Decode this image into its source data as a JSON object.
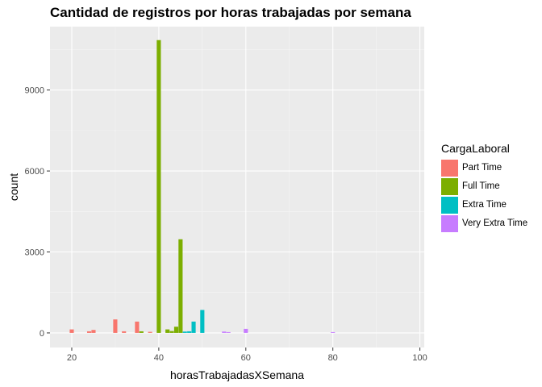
{
  "chart_data": {
    "type": "bar",
    "title": "Cantidad de registros por horas trabajadas por semana",
    "xlabel": "horasTrabajadasXSemana",
    "ylabel": "count",
    "xlim": [
      15,
      101
    ],
    "ylim": [
      -540,
      11350
    ],
    "xticks": [
      20,
      40,
      60,
      80,
      100
    ],
    "yticks": [
      0,
      3000,
      6000,
      9000
    ],
    "xtick_labels": [
      "20",
      "40",
      "60",
      "80",
      "100"
    ],
    "ytick_labels": [
      "0",
      "3000",
      "6000",
      "9000"
    ],
    "grid": true,
    "legend_position": "right",
    "legend_title": "CargaLaboral",
    "series": [
      {
        "name": "Part Time",
        "color": "#F8766D",
        "x": [
          20,
          24,
          25,
          30,
          32,
          35,
          38
        ],
        "y": [
          130,
          60,
          110,
          500,
          60,
          420,
          40
        ]
      },
      {
        "name": "Full Time",
        "color": "#7CAE00",
        "x": [
          36,
          40,
          42,
          43,
          44,
          45
        ],
        "y": [
          60,
          10850,
          130,
          70,
          230,
          3470
        ]
      },
      {
        "name": "Extra Time",
        "color": "#00BFC4",
        "x": [
          46,
          47,
          48,
          50
        ],
        "y": [
          50,
          60,
          420,
          850
        ]
      },
      {
        "name": "Very Extra Time",
        "color": "#C77CFF",
        "x": [
          55,
          56,
          60,
          80
        ],
        "y": [
          50,
          30,
          150,
          30
        ]
      }
    ]
  }
}
